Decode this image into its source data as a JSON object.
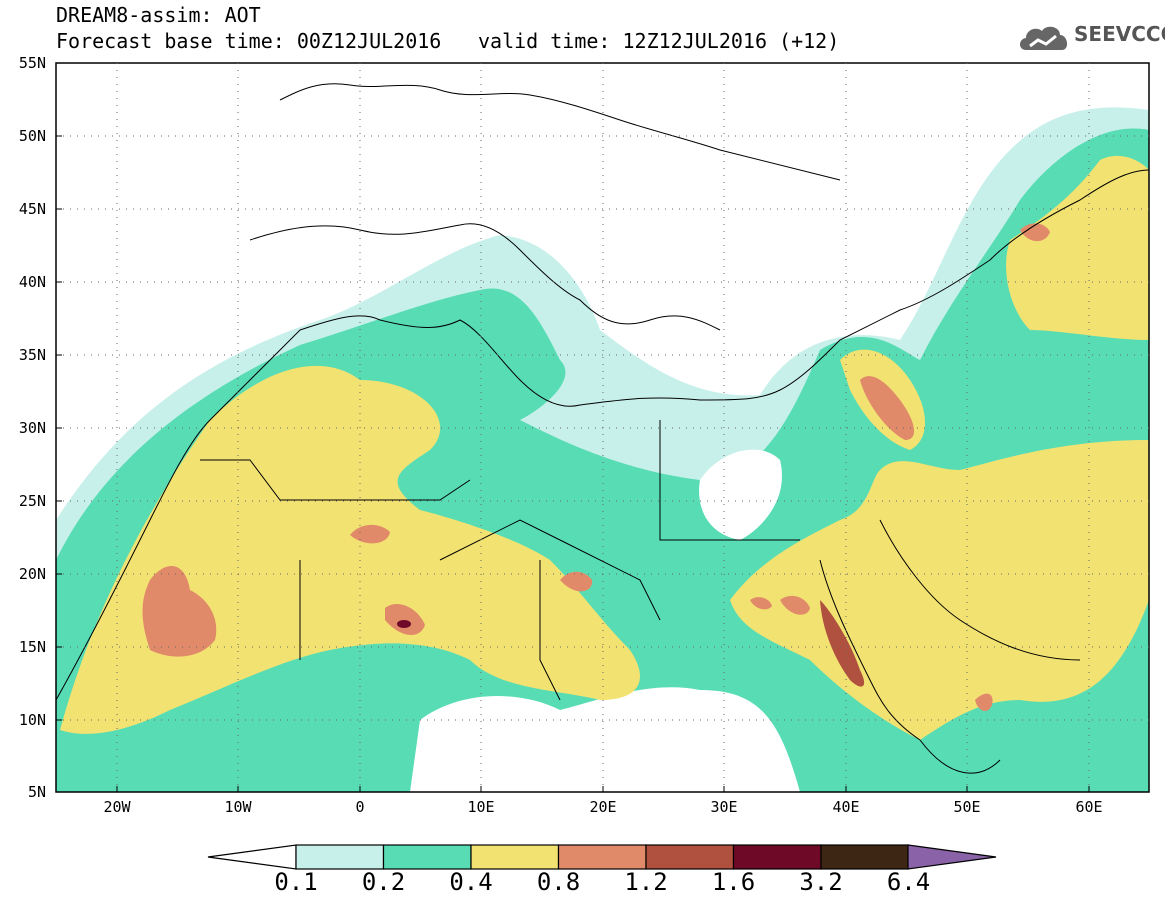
{
  "header": {
    "title_line1": "DREAM8-assim: AOT",
    "title_line2": "Forecast base time: 00Z12JUL2016",
    "valid_time": "valid time: 12Z12JUL2016 (+12)",
    "logo_text": "SEEVCCC",
    "logo_icon": "cloud-icon"
  },
  "axes": {
    "lat_labels": [
      "55N",
      "50N",
      "45N",
      "40N",
      "35N",
      "30N",
      "25N",
      "20N",
      "15N",
      "10N",
      "5N"
    ],
    "lon_labels": [
      "20W",
      "10W",
      "0",
      "10E",
      "20E",
      "30E",
      "40E",
      "50E",
      "60E"
    ],
    "lat_range": [
      5,
      55
    ],
    "lon_range": [
      -25,
      65
    ]
  },
  "colorbar": {
    "labels": [
      "0.1",
      "0.2",
      "0.4",
      "0.8",
      "1.2",
      "1.6",
      "3.2",
      "6.4"
    ],
    "colors": [
      "#c8f0ea",
      "#58dcb4",
      "#f2e272",
      "#e18a6a",
      "#b0503e",
      "#6e0a28",
      "#3e2614",
      "#8a62a8"
    ]
  },
  "palette": {
    "c01": "#c8f0ea",
    "c02": "#58dcb4",
    "c04": "#f2e272",
    "c08": "#e18a6a",
    "c12": "#b0503e",
    "c16": "#6e0a28",
    "c32": "#3e2614"
  }
}
